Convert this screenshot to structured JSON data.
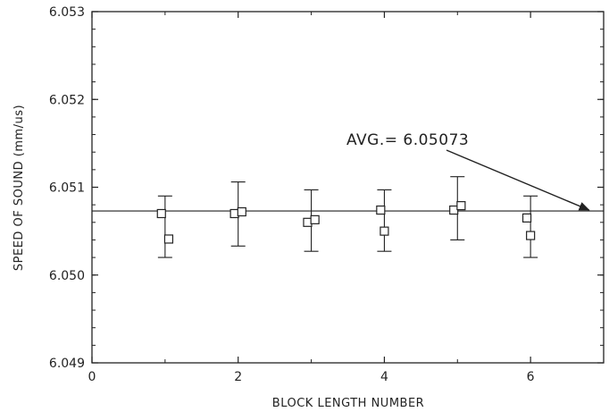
{
  "chart_data": {
    "type": "scatter",
    "title": "",
    "xlabel": "BLOCK LENGTH NUMBER",
    "ylabel": "SPEED OF SOUND  (mm/us)",
    "xlim": [
      0,
      7
    ],
    "ylim": [
      6.049,
      6.053
    ],
    "x_ticks": [
      0,
      2,
      4,
      6
    ],
    "x_tick_labels": [
      "0",
      "2",
      "4",
      "6"
    ],
    "y_ticks": [
      6.049,
      6.05,
      6.051,
      6.052,
      6.053
    ],
    "y_tick_labels": [
      "6.049",
      "6.050",
      "6.051",
      "6.052",
      "6.053"
    ],
    "grid": false,
    "marker": "open-square",
    "points": [
      {
        "x": 0.95,
        "y": 6.0507
      },
      {
        "x": 1.05,
        "y": 6.05041
      },
      {
        "x": 1.95,
        "y": 6.0507
      },
      {
        "x": 2.05,
        "y": 6.05072
      },
      {
        "x": 2.95,
        "y": 6.0506
      },
      {
        "x": 3.05,
        "y": 6.05063
      },
      {
        "x": 3.95,
        "y": 6.05074
      },
      {
        "x": 4.0,
        "y": 6.0505
      },
      {
        "x": 4.95,
        "y": 6.05074
      },
      {
        "x": 5.05,
        "y": 6.05079
      },
      {
        "x": 5.95,
        "y": 6.05065
      },
      {
        "x": 6.0,
        "y": 6.05045
      }
    ],
    "error_bars": [
      {
        "x": 1,
        "low": 6.0502,
        "high": 6.0509
      },
      {
        "x": 2,
        "low": 6.05033,
        "high": 6.05106
      },
      {
        "x": 3,
        "low": 6.05027,
        "high": 6.05097
      },
      {
        "x": 4,
        "low": 6.05027,
        "high": 6.05097
      },
      {
        "x": 5,
        "low": 6.0504,
        "high": 6.05112
      },
      {
        "x": 6,
        "low": 6.0502,
        "high": 6.0509
      }
    ],
    "reference_line": {
      "y": 6.05073
    },
    "annotation": {
      "text": "AVG.= 6.05073",
      "arrow_to_x": 6.8,
      "arrow_to_y": 6.05073
    }
  }
}
